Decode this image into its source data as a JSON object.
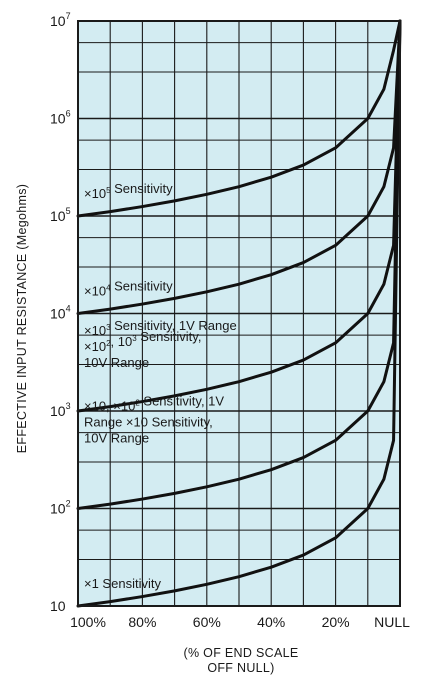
{
  "chart_data": {
    "type": "line",
    "ylabel": "EFFECTIVE INPUT RESISTANCE (Megohms)",
    "xlabel_lines": [
      "(% OF END SCALE",
      "OFF NULL)"
    ],
    "y_scale": "log",
    "ylim": [
      10,
      10000000
    ],
    "y_ticks": [
      {
        "value": 10,
        "base": "10",
        "exp": ""
      },
      {
        "value": 100,
        "base": "10",
        "exp": "2"
      },
      {
        "value": 1000,
        "base": "10",
        "exp": "3"
      },
      {
        "value": 10000,
        "base": "10",
        "exp": "4"
      },
      {
        "value": 100000,
        "base": "10",
        "exp": "5"
      },
      {
        "value": 1000000,
        "base": "10",
        "exp": "6"
      },
      {
        "value": 10000000,
        "base": "10",
        "exp": "7"
      }
    ],
    "x_tick_labels": [
      "100%",
      "80%",
      "60%",
      "40%",
      "20%",
      "NULL"
    ],
    "x_ticks_percent": [
      100,
      80,
      60,
      40,
      20,
      0
    ],
    "xlim_percent": [
      100,
      0
    ],
    "grid": true,
    "grid_color": "#1a1a1a",
    "plot_background": "#d3ecf2",
    "curve_color": "#111111",
    "series": [
      {
        "label_parts": [
          [
            {
              "t": "×10"
            },
            {
              "t": "5",
              "sup": true
            },
            {
              "t": " Sensitivity"
            }
          ]
        ],
        "x": [
          100,
          90,
          80,
          70,
          60,
          50,
          40,
          30,
          20,
          10,
          5,
          2,
          0
        ],
        "y": [
          100000,
          111000,
          125000,
          143000,
          167000,
          200000,
          250000,
          333000,
          500000,
          1000000,
          2000000,
          5000000,
          10000000
        ]
      },
      {
        "label_parts": [
          [
            {
              "t": "×10"
            },
            {
              "t": "4",
              "sup": true
            },
            {
              "t": " Sensitivity"
            }
          ]
        ],
        "x": [
          100,
          90,
          80,
          70,
          60,
          50,
          40,
          30,
          20,
          10,
          5,
          2,
          0
        ],
        "y": [
          10000,
          11100,
          12500,
          14300,
          16700,
          20000,
          25000,
          33300,
          50000,
          100000,
          200000,
          500000,
          10000000
        ]
      },
      {
        "label_parts": [
          [
            {
              "t": "×10"
            },
            {
              "t": "3",
              "sup": true
            },
            {
              "t": " Sensitivity, 1V Range"
            }
          ],
          [
            {
              "t": "×10"
            },
            {
              "t": "2",
              "sup": true
            },
            {
              "t": ", 10"
            },
            {
              "t": "3",
              "sup": true
            },
            {
              "t": " Sensitivity,"
            }
          ],
          [
            {
              "t": "10V Range"
            }
          ]
        ],
        "x": [
          100,
          90,
          80,
          70,
          60,
          50,
          40,
          30,
          20,
          10,
          5,
          2,
          0
        ],
        "y": [
          1000,
          1110,
          1250,
          1430,
          1670,
          2000,
          2500,
          3330,
          5000,
          10000,
          20000,
          50000,
          10000000
        ]
      },
      {
        "label_parts": [
          [
            {
              "t": "×10, ×10"
            },
            {
              "t": "2",
              "sup": true
            },
            {
              "t": " Sensitivity, 1V"
            }
          ],
          [
            {
              "t": "Range ×10 Sensitivity,"
            }
          ],
          [
            {
              "t": "10V Range"
            }
          ]
        ],
        "x": [
          100,
          90,
          80,
          70,
          60,
          50,
          40,
          30,
          20,
          10,
          5,
          2,
          0
        ],
        "y": [
          100,
          111,
          125,
          143,
          167,
          200,
          250,
          333,
          500,
          1000,
          2000,
          5000,
          10000000
        ]
      },
      {
        "label_parts": [
          [
            {
              "t": "×1 Sensitivity"
            }
          ]
        ],
        "x": [
          100,
          90,
          80,
          70,
          60,
          50,
          40,
          30,
          20,
          10,
          5,
          2,
          0
        ],
        "y": [
          10,
          11.1,
          12.5,
          14.3,
          16.7,
          20,
          25,
          33.3,
          50,
          100,
          200,
          500,
          10000000
        ]
      }
    ]
  }
}
